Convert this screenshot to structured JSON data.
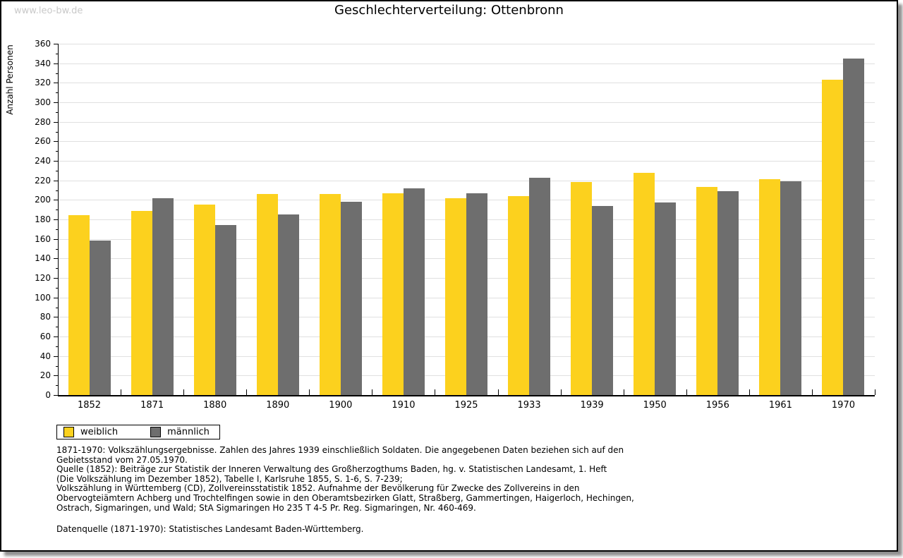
{
  "watermark": "www.leo-bw.de",
  "chart_data": {
    "type": "bar",
    "title": "Geschlechterverteilung: Ottenbronn",
    "ylabel": "Anzahl Personen",
    "xlabel": "",
    "categories": [
      "1852",
      "1871",
      "1880",
      "1890",
      "1900",
      "1910",
      "1925",
      "1933",
      "1939",
      "1950",
      "1956",
      "1961",
      "1970"
    ],
    "series": [
      {
        "name": "weiblich",
        "color": "#fcd11e",
        "values": [
          184,
          189,
          195,
          206,
          206,
          207,
          202,
          204,
          218,
          228,
          213,
          221,
          323
        ]
      },
      {
        "name": "männlich",
        "color": "#6e6e6e",
        "values": [
          158,
          202,
          174,
          185,
          198,
          212,
          207,
          223,
          194,
          197,
          209,
          219,
          345
        ]
      }
    ],
    "ylim": [
      0,
      360
    ],
    "ytick_step": 20,
    "yminor_step": 10,
    "grid": true,
    "gridline_color": "#e0e0e0",
    "legend_position": "bottom-left"
  },
  "footnotes": [
    "1871-1970: Volkszählungsergebnisse. Zahlen des Jahres 1939 einschließlich Soldaten. Die angegebenen Daten beziehen sich auf den",
    "Gebietsstand vom 27.05.1970.",
    "Quelle (1852): Beiträge zur Statistik der Inneren Verwaltung des Großherzogthums Baden, hg. v. Statistischen Landesamt, 1. Heft",
    "(Die Volkszählung im Dezember 1852), Tabelle I, Karlsruhe 1855, S. 1-6, S. 7-239;",
    "Volkszählung in Württemberg (CD), Zollvereinsstatistik 1852. Aufnahme der Bevölkerung für Zwecke des Zollvereins in den",
    "Obervogteiämtern Achberg und Trochtelfingen sowie in den Oberamtsbezirken Glatt, Straßberg, Gammertingen, Haigerloch, Hechingen,",
    "Ostrach, Sigmaringen, und Wald; StA Sigmaringen Ho 235 T 4-5 Pr. Reg. Sigmaringen, Nr. 460-469."
  ],
  "datasource": "Datenquelle (1871-1970): Statistisches Landesamt Baden-Württemberg."
}
